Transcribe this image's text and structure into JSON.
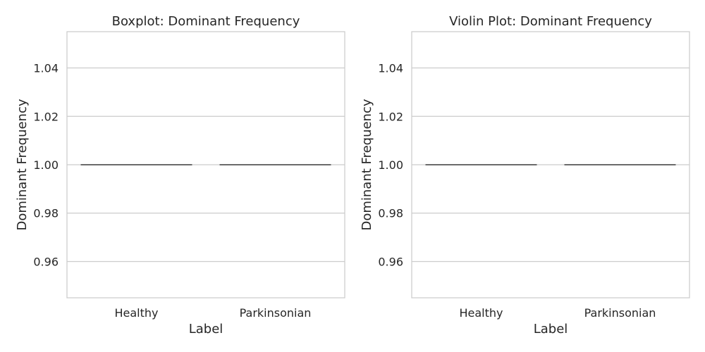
{
  "chart_data": [
    {
      "type": "box",
      "title": "Boxplot: Dominant Frequency",
      "xlabel": "Label",
      "ylabel": "Dominant Frequency",
      "categories": [
        "Healthy",
        "Parkinsonian"
      ],
      "values": [
        1.0,
        1.0
      ],
      "yticks": [
        0.96,
        0.98,
        1.0,
        1.02,
        1.04
      ],
      "ytick_labels": [
        "0.96",
        "0.98",
        "1.00",
        "1.02",
        "1.04"
      ],
      "ylim": [
        0.945,
        1.055
      ],
      "grid": true,
      "colors": {
        "mark": "#6b6b6b",
        "grid": "#cccccc"
      }
    },
    {
      "type": "violin",
      "title": "Violin Plot: Dominant Frequency",
      "xlabel": "Label",
      "ylabel": "Dominant Frequency",
      "categories": [
        "Healthy",
        "Parkinsonian"
      ],
      "values": [
        1.0,
        1.0
      ],
      "yticks": [
        0.96,
        0.98,
        1.0,
        1.02,
        1.04
      ],
      "ytick_labels": [
        "0.96",
        "0.98",
        "1.00",
        "1.02",
        "1.04"
      ],
      "ylim": [
        0.945,
        1.055
      ],
      "grid": true,
      "colors": {
        "mark": "#6b6b6b",
        "grid": "#cccccc"
      }
    }
  ]
}
